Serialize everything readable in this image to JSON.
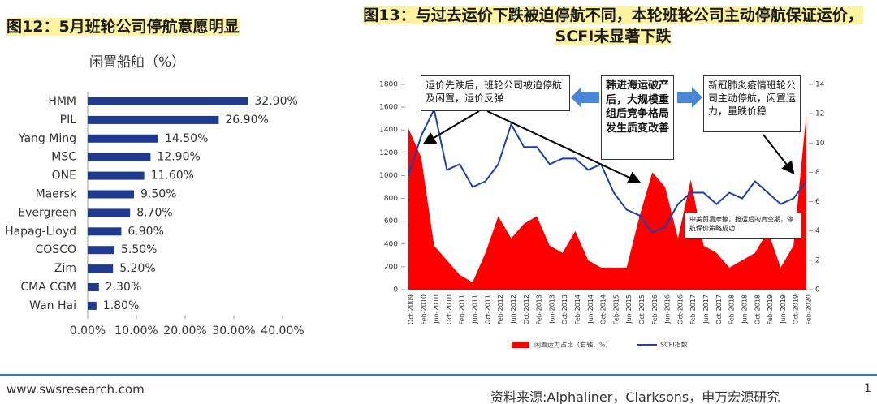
{
  "chart_data": [
    {
      "type": "bar",
      "orientation": "horizontal",
      "title": "图12：5月班轮公司停航意愿明显",
      "axis_label": "闲置船舶（%）",
      "categories": [
        "HMM",
        "PIL",
        "Yang Ming",
        "MSC",
        "ONE",
        "Maersk",
        "Evergreen",
        "Hapag-Lloyd",
        "COSCO",
        "Zim",
        "CMA CGM",
        "Wan Hai"
      ],
      "values": [
        32.9,
        26.9,
        14.5,
        12.9,
        11.6,
        9.5,
        8.7,
        6.9,
        5.5,
        5.2,
        2.3,
        1.8
      ],
      "value_labels": [
        "32.90%",
        "26.90%",
        "14.50%",
        "12.90%",
        "11.60%",
        "9.50%",
        "8.70%",
        "6.90%",
        "5.50%",
        "5.20%",
        "2.30%",
        "1.80%"
      ],
      "color": "#1f3a8f",
      "xlim": [
        0,
        40
      ],
      "xticks": [
        {
          "value": 0,
          "label": "0.00%"
        },
        {
          "value": 10,
          "label": "10.00%"
        },
        {
          "value": 20,
          "label": "20.00%"
        },
        {
          "value": 30,
          "label": "30.00%"
        },
        {
          "value": 40,
          "label": "40.00%"
        }
      ]
    },
    {
      "type": "combo",
      "title": "图13：与过去运价下跌被迫停航不同，本轮班轮公司主动停航保证运价，SCFI未显著下跌",
      "categories": [
        "Oct-2009",
        "Feb-2010",
        "Jun-2010",
        "Oct-2010",
        "Feb-2011",
        "Jun-2011",
        "Oct-2011",
        "Feb-2012",
        "Jun-2012",
        "Oct-2012",
        "Feb-2013",
        "Jun-2013",
        "Oct-2013",
        "Feb-2014",
        "Jun-2014",
        "Oct-2014",
        "Feb-2015",
        "Jun-2015",
        "Oct-2015",
        "Feb-2016",
        "Jun-2016",
        "Oct-2016",
        "Feb-2017",
        "Jun-2017",
        "Oct-2017",
        "Feb-2018",
        "Jun-2018",
        "Oct-2018",
        "Feb-2019",
        "Jun-2019",
        "Oct-2019",
        "Feb-2020"
      ],
      "series": [
        {
          "name": "闲置运力占比（右轴，%）",
          "type": "area",
          "axis": "y2",
          "color": "#ff0000",
          "values": [
            11,
            9,
            3,
            2,
            1,
            0.5,
            2.5,
            5,
            3.5,
            4.5,
            5,
            3,
            2.5,
            4,
            2,
            1.5,
            1.5,
            1.5,
            5,
            8,
            7,
            3.5,
            7.5,
            3,
            2.5,
            1.5,
            2,
            2.5,
            4,
            1.5,
            3,
            12
          ]
        },
        {
          "name": "SCFI指数",
          "type": "line",
          "color": "#1f3faf",
          "values": [
            1000,
            1350,
            1580,
            1050,
            1100,
            900,
            950,
            1100,
            1450,
            1250,
            1250,
            1100,
            1150,
            1150,
            1050,
            1100,
            850,
            700,
            650,
            500,
            550,
            750,
            850,
            850,
            750,
            850,
            800,
            950,
            850,
            750,
            800,
            950
          ]
        }
      ],
      "ylim": [
        0,
        1800
      ],
      "yticks": [
        0,
        200,
        400,
        600,
        800,
        1000,
        1200,
        1400,
        1600,
        1800
      ],
      "y2lim": [
        0,
        14
      ],
      "y2ticks": [
        0,
        2,
        4,
        6,
        8,
        10,
        12,
        14
      ],
      "annotations": [
        "运价先跌后，班轮公司被迫停航及闲置，运价反弹",
        "韩进海运破产后，大规模重组后竞争格局发生质变改善",
        "新冠肺炎疫情班轮公司主动停航，闲置运力，量跌价稳",
        "中美贸易摩擦，抢运后的真空期，停航保价策略成功"
      ]
    }
  ],
  "footer": {
    "website": "www.swsresearch.com",
    "source": "资料来源:Alphaliner，Clarksons，申万宏源研究",
    "page": "1"
  }
}
